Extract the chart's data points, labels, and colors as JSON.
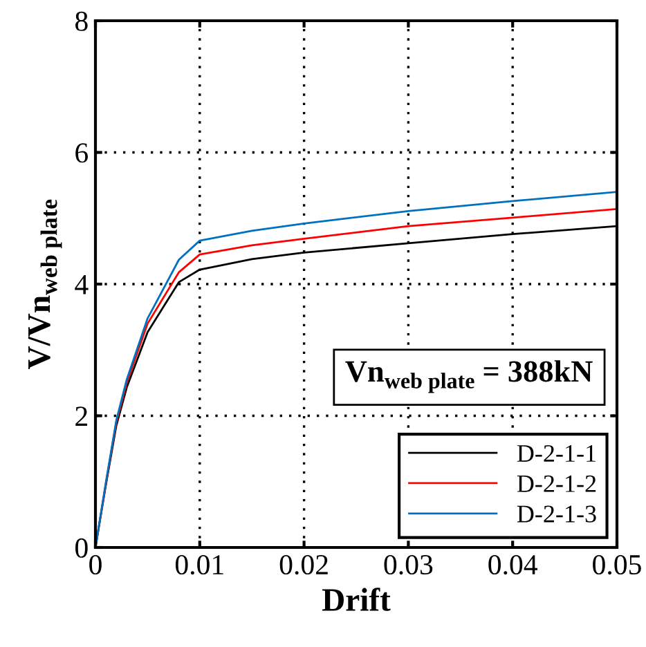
{
  "chart_data": {
    "type": "line",
    "xlabel": "Drift",
    "ylabel": "V/Vn$_{web plate}$",
    "x": [
      0,
      0.001,
      0.002,
      0.003,
      0.005,
      0.008,
      0.01,
      0.015,
      0.02,
      0.03,
      0.04,
      0.05
    ],
    "series": [
      {
        "name": "D-2-1-1",
        "color": "#000000",
        "values": [
          0,
          0.95,
          1.85,
          2.43,
          3.27,
          4.03,
          4.22,
          4.38,
          4.48,
          4.62,
          4.76,
          4.88
        ]
      },
      {
        "name": "D-2-1-2",
        "color": "#ff0000",
        "values": [
          0,
          0.97,
          1.9,
          2.5,
          3.4,
          4.18,
          4.45,
          4.59,
          4.69,
          4.88,
          5.01,
          5.14
        ]
      },
      {
        "name": "D-2-1-3",
        "color": "#0072bd",
        "values": [
          0,
          0.99,
          1.93,
          2.55,
          3.48,
          4.37,
          4.66,
          4.81,
          4.92,
          5.11,
          5.26,
          5.4
        ]
      }
    ],
    "xlim": [
      0,
      0.05
    ],
    "xticks": [
      0,
      0.01,
      0.02,
      0.03,
      0.04,
      0.05
    ],
    "ylim": [
      0,
      8
    ],
    "yticks": [
      0,
      2,
      4,
      6,
      8
    ],
    "grid": true,
    "legend": "bottom right",
    "marker": "none",
    "line_style": "solid",
    "annotations": [
      "Vn$_{web plate}$ = 388kN"
    ]
  }
}
